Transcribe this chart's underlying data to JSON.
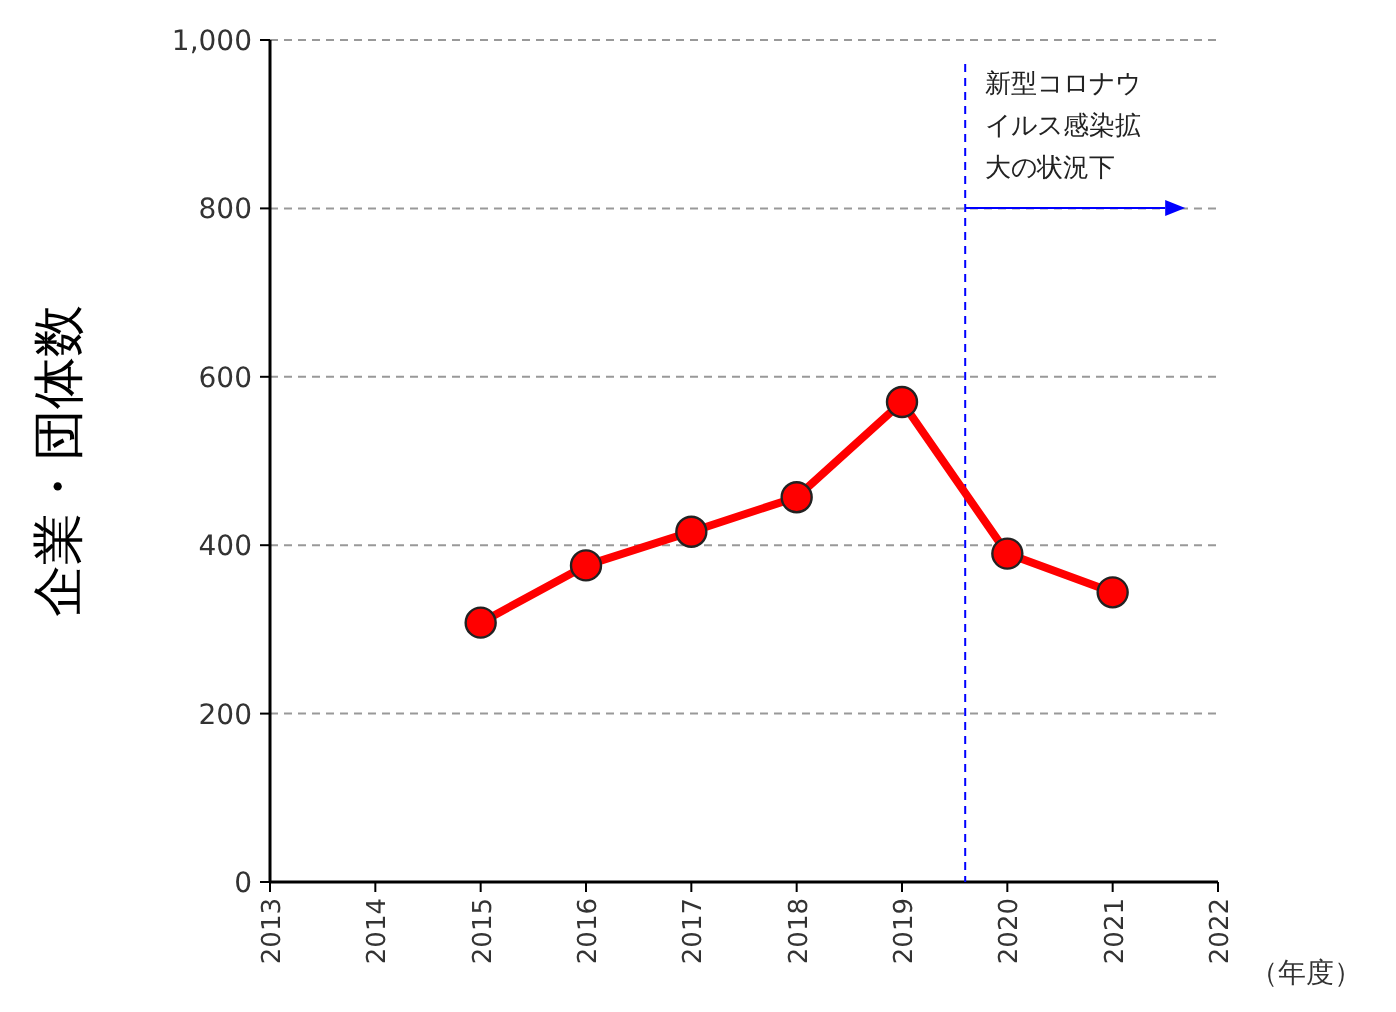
{
  "chart_data": {
    "type": "line",
    "ylabel": "企業・団体数",
    "xlabel": "（年度）",
    "x": [
      2015,
      2016,
      2017,
      2018,
      2019,
      2020,
      2021
    ],
    "series": [
      {
        "color": "#ff0000",
        "values": [
          308,
          376,
          416,
          457,
          570,
          390,
          344
        ]
      }
    ],
    "xlim": [
      2013,
      2022
    ],
    "xticks": [
      2013,
      2014,
      2015,
      2016,
      2017,
      2018,
      2019,
      2020,
      2021,
      2022
    ],
    "ylim": [
      0,
      1000
    ],
    "yticks": [
      0,
      200,
      400,
      600,
      800,
      {
        "value": 1000,
        "label": "1,000"
      }
    ],
    "grid": "y",
    "marker": "circle",
    "line_style": "solid",
    "ref_lines": [
      {
        "axis": "x",
        "value": 2019.6,
        "label": "新型コロナウイルス感染拡大の状況下",
        "color": "#0000ff",
        "line_style": "dashed"
      }
    ]
  }
}
